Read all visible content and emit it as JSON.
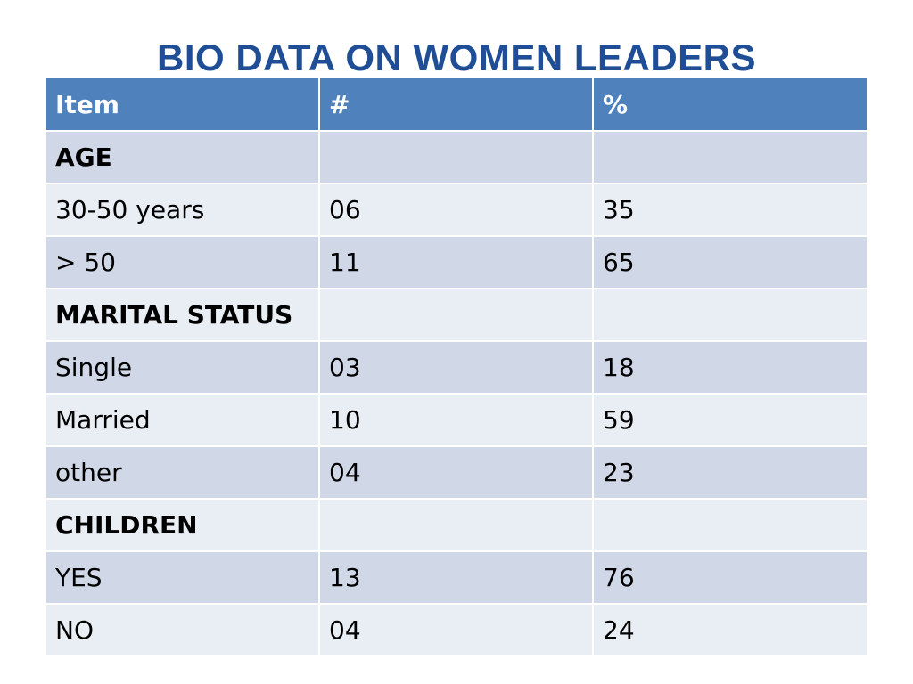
{
  "title": "BIO DATA ON WOMEN LEADERS",
  "table": {
    "headers": [
      "Item",
      "#",
      "%"
    ],
    "rows": [
      {
        "item": "AGE",
        "count": "",
        "percent": "",
        "section": true
      },
      {
        "item": "30-50 years",
        "count": "06",
        "percent": "35",
        "section": false
      },
      {
        "item": "> 50",
        "count": "11",
        "percent": "65",
        "section": false
      },
      {
        "item": "MARITAL STATUS",
        "count": "",
        "percent": "",
        "section": true
      },
      {
        "item": "Single",
        "count": "03",
        "percent": "18",
        "section": false
      },
      {
        "item": "Married",
        "count": "10",
        "percent": "59",
        "section": false
      },
      {
        "item": "other",
        "count": "04",
        "percent": "23",
        "section": false
      },
      {
        "item": "CHILDREN",
        "count": "",
        "percent": "",
        "section": true
      },
      {
        "item": "YES",
        "count": "13",
        "percent": "76",
        "section": false
      },
      {
        "item": "NO",
        "count": "04",
        "percent": "24",
        "section": false
      }
    ]
  },
  "colors": {
    "title": "#1F4E96",
    "header_bg": "#4F81BD",
    "row_dark": "#D0D8E8",
    "row_light": "#E9EDF4"
  }
}
